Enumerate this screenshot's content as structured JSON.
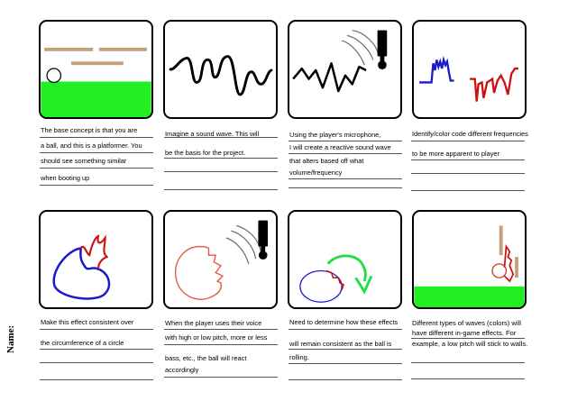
{
  "name_label": "Name:",
  "colors": {
    "ground": "#22ee22",
    "wood": "#c4a07a",
    "red": "#cc1111",
    "blue": "#1a1acc",
    "green": "#22dd44"
  },
  "icons": [
    "ball-sprite",
    "platform",
    "sound-wave",
    "microphone-icon",
    "colored-wave",
    "swirl-effect",
    "face-sketch",
    "ball-with-effect"
  ],
  "panels": [
    {
      "caption": [
        "The base concept is that you are",
        "a ball, and this is a platformer. You",
        "should see something similar",
        "when booting up"
      ]
    },
    {
      "caption": [
        "Imagine a sound wave. This will",
        "be the basis for the project."
      ]
    },
    {
      "caption": [
        "Using the player's microphone,",
        "I will create a reactive sound wave",
        "that alters based off what",
        "volume/frequency"
      ]
    },
    {
      "caption": [
        "Identify/color code different frequencies",
        "to be more apparent to player"
      ]
    },
    {
      "caption": [
        "Make this effect consistent over",
        "the circumference of a circle"
      ]
    },
    {
      "caption": [
        "When the player uses their voice",
        "with high or low pitch, more or less",
        "bass, etc., the ball will react",
        "accordingly"
      ]
    },
    {
      "caption": [
        "Need to determine how these effects",
        "will remain consistent as the ball is",
        "rolling."
      ]
    },
    {
      "caption": [
        "Different types of waves (colors) will",
        "have different in-game effects. For",
        "example, a low pitch will stick to walls."
      ]
    }
  ]
}
